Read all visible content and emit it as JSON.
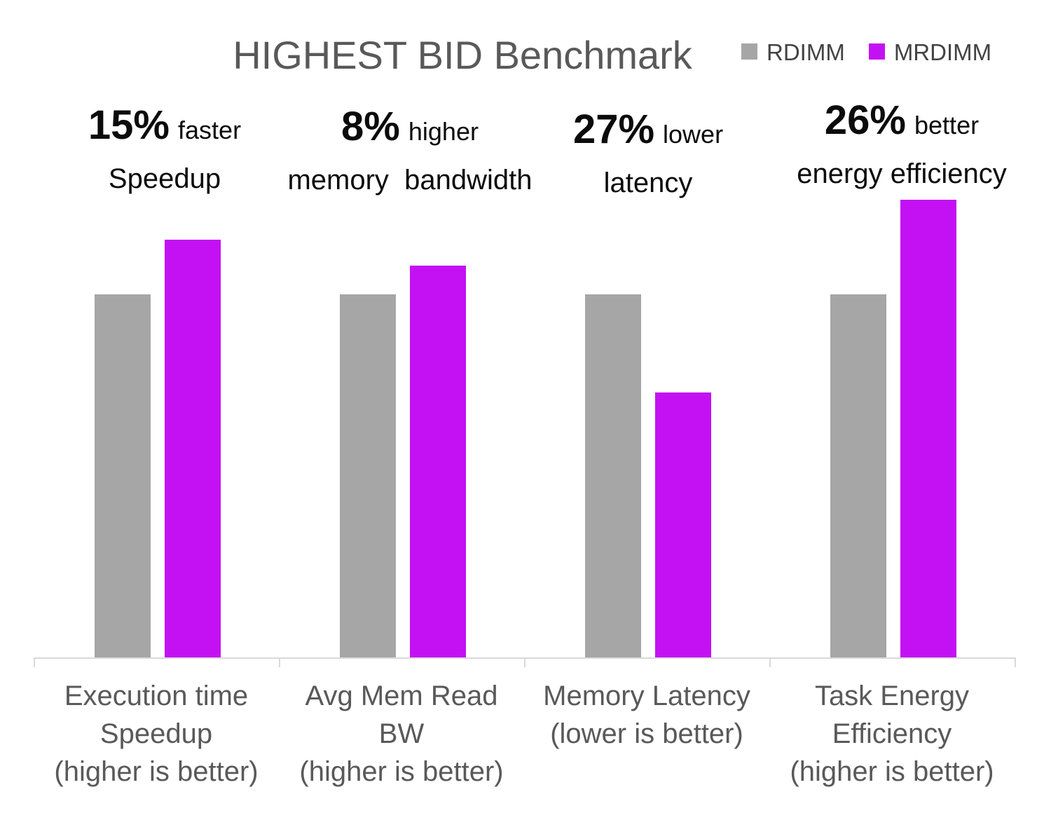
{
  "chart_data": {
    "type": "bar",
    "title": "HIGHEST BID Benchmark",
    "categories": [
      "Execution time Speedup (higher is better)",
      "Avg Mem Read BW (higher is better)",
      "Memory Latency (lower is better)",
      "Task Energy Efficiency (higher is better)"
    ],
    "category_lines": [
      [
        "Execution time",
        "Speedup",
        "(higher is better)"
      ],
      [
        "Avg Mem Read BW",
        "(higher is better)"
      ],
      [
        "Memory Latency",
        "(lower is better)"
      ],
      [
        "Task Energy",
        "Efficiency",
        "(higher is better)"
      ]
    ],
    "series": [
      {
        "name": "RDIMM",
        "color": "#a6a6a6",
        "values": [
          1.0,
          1.0,
          1.0,
          1.0
        ]
      },
      {
        "name": "MRDIMM",
        "color": "#c411f4",
        "values": [
          1.15,
          1.08,
          0.73,
          1.26
        ]
      }
    ],
    "annotations": [
      {
        "big": "15%",
        "small": "faster",
        "line2": "Speedup"
      },
      {
        "big": "8%",
        "small": "higher",
        "line2": "memory  bandwidth"
      },
      {
        "big": "27%",
        "small": "lower",
        "line2": "latency"
      },
      {
        "big": "26%",
        "small": "better",
        "line2": "energy efficiency"
      }
    ],
    "ylim": [
      0,
      1.36
    ],
    "grid": false,
    "legend_position": "top-right",
    "xlabel": "",
    "ylabel": ""
  },
  "colors": {
    "rdimm_bar": "#a6a6a6",
    "mrdimm_bar": "#c411f4",
    "title_text": "#595959",
    "axis_label_text": "#595959",
    "annotation_text": "#0b0b0b",
    "axis_line": "#d9d9d9",
    "background": "#ffffff"
  }
}
